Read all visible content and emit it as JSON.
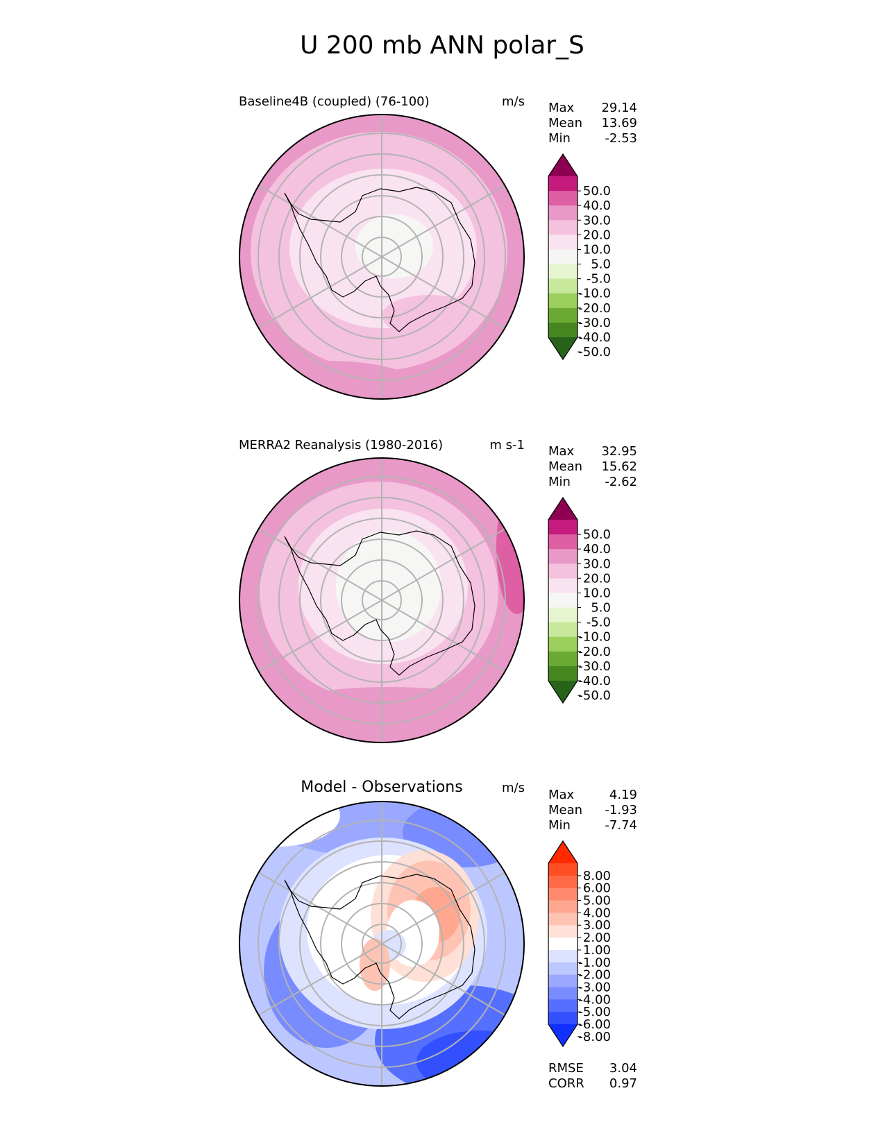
{
  "title": "U 200 mb ANN polar_S",
  "chart_data": [
    {
      "type": "heatmap",
      "projection": "south polar stereographic",
      "title": "Baseline4B (coupled) (76-100)",
      "units": "m/s",
      "stats": [
        {
          "label": "Max",
          "value": "29.14"
        },
        {
          "label": "Mean",
          "value": "13.69"
        },
        {
          "label": "Min",
          "value": "-2.53"
        }
      ],
      "colorbar": {
        "ticks": [
          "50.0",
          "40.0",
          "30.0",
          "20.0",
          "10.0",
          "5.0",
          "-5.0",
          "-10.0",
          "-20.0",
          "-30.0",
          "-40.0",
          "-50.0"
        ],
        "colors": [
          "#8e0152",
          "#c51b7d",
          "#de5fa4",
          "#e899c7",
          "#f4c1de",
          "#fae3f0",
          "#f6f6f4",
          "#e6f5d0",
          "#c7e89b",
          "#9bcf5b",
          "#6aaa33",
          "#46861f",
          "#276419"
        ]
      },
      "field_bands": [
        {
          "from_lat": -90,
          "to_lat": -80,
          "value": 3
        },
        {
          "from_lat": -80,
          "to_lat": -68,
          "value": 8
        },
        {
          "from_lat": -68,
          "to_lat": -58,
          "value": 14
        },
        {
          "from_lat": -58,
          "to_lat": -50,
          "value": 22
        }
      ]
    },
    {
      "type": "heatmap",
      "projection": "south polar stereographic",
      "title": "MERRA2 Reanalysis (1980-2016)",
      "units": "m s-1",
      "stats": [
        {
          "label": "Max",
          "value": "32.95"
        },
        {
          "label": "Mean",
          "value": "15.62"
        },
        {
          "label": "Min",
          "value": "-2.62"
        }
      ],
      "colorbar": {
        "ticks": [
          "50.0",
          "40.0",
          "30.0",
          "20.0",
          "10.0",
          "5.0",
          "-5.0",
          "-10.0",
          "-20.0",
          "-30.0",
          "-40.0",
          "-50.0"
        ],
        "colors": [
          "#8e0152",
          "#c51b7d",
          "#de5fa4",
          "#e899c7",
          "#f4c1de",
          "#fae3f0",
          "#f6f6f4",
          "#e6f5d0",
          "#c7e89b",
          "#9bcf5b",
          "#6aaa33",
          "#46861f",
          "#276419"
        ]
      },
      "field_bands": [
        {
          "from_lat": -90,
          "to_lat": -76,
          "value": 3
        },
        {
          "from_lat": -76,
          "to_lat": -68,
          "value": 8
        },
        {
          "from_lat": -68,
          "to_lat": -60,
          "value": 15
        },
        {
          "from_lat": -60,
          "to_lat": -50,
          "value": 25
        }
      ]
    },
    {
      "type": "heatmap",
      "projection": "south polar stereographic",
      "title": "Model - Observations",
      "units": "m/s",
      "stats": [
        {
          "label": "Max",
          "value": "4.19"
        },
        {
          "label": "Mean",
          "value": "-1.93"
        },
        {
          "label": "Min",
          "value": "-7.74"
        }
      ],
      "colorbar": {
        "ticks": [
          "8.00",
          "6.00",
          "5.00",
          "4.00",
          "3.00",
          "2.00",
          "1.00",
          "-1.00",
          "-2.00",
          "-3.00",
          "-4.00",
          "-5.00",
          "-6.00",
          "-8.00"
        ],
        "colors": [
          "#ff2a00",
          "#ff4d24",
          "#ff6a45",
          "#ff8a6e",
          "#ffa78f",
          "#ffc3b3",
          "#ffe0d6",
          "#ffffff",
          "#dde2ff",
          "#bdc7ff",
          "#9aa9ff",
          "#788cff",
          "#5570ff",
          "#3350ff",
          "#1030ff"
        ]
      },
      "footer_stats": [
        {
          "label": "RMSE",
          "value": "3.04"
        },
        {
          "label": "CORR",
          "value": "0.97"
        }
      ]
    }
  ]
}
